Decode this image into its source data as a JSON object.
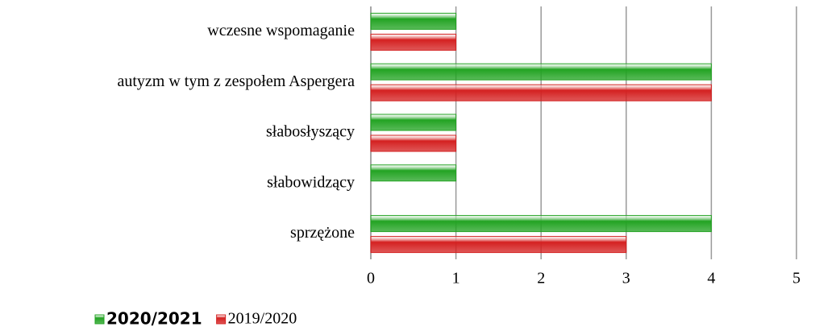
{
  "chart_data": {
    "type": "barh",
    "categories": [
      "wczesne wspomaganie",
      "autyzm w tym z zespołem Aspergera",
      "słabosłyszący",
      "słabowidzący",
      "sprzężone"
    ],
    "series": [
      {
        "name": "2020/2021",
        "color": "#22a322",
        "values": [
          1,
          4,
          1,
          1,
          4
        ]
      },
      {
        "name": "2019/2020",
        "color": "#d42020",
        "values": [
          1,
          4,
          1,
          0,
          3
        ]
      }
    ],
    "xlim": [
      0,
      5
    ],
    "xticks": [
      0,
      1,
      2,
      3,
      4,
      5
    ],
    "grid": true,
    "legend": "bottom"
  }
}
